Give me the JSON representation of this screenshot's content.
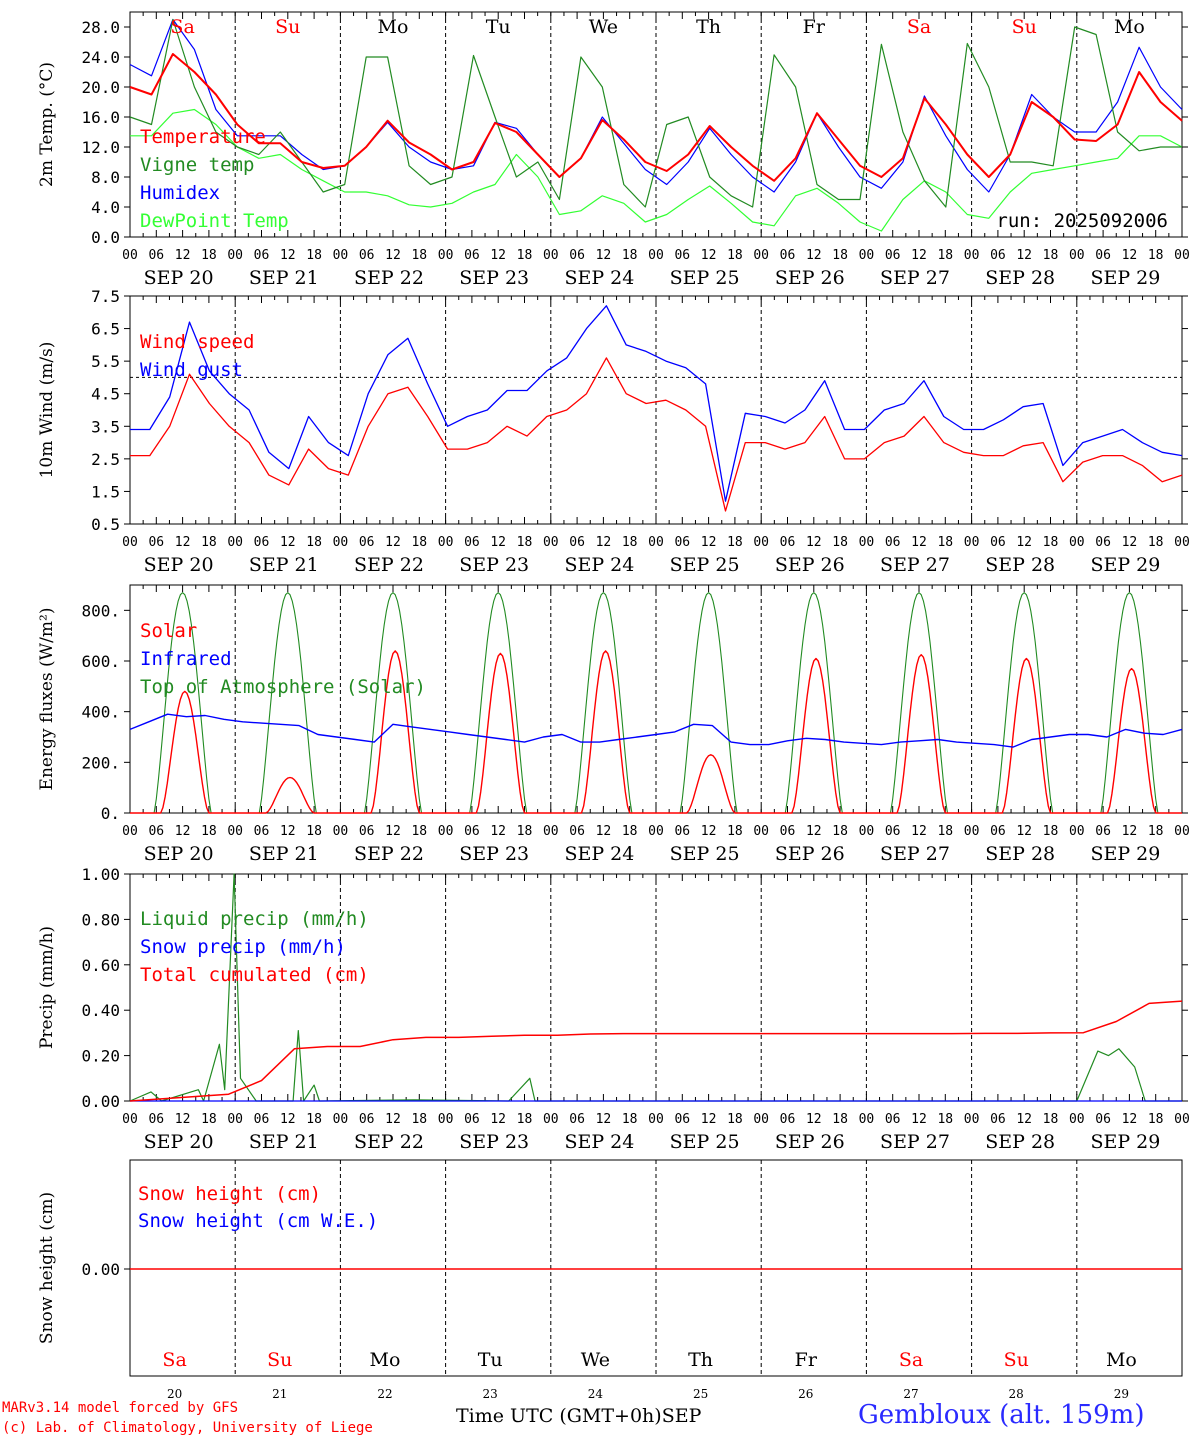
{
  "chart_data": [
    {
      "type": "line",
      "ylabel": "2m Temp. (°C)",
      "ylim": [
        0,
        30
      ],
      "yticks": [
        "0.0",
        "4.0",
        "8.0",
        "12.0",
        "16.0",
        "20.0",
        "24.0",
        "28.0"
      ],
      "run_label": "run: 2025092006",
      "day_names": [
        "Sa",
        "Su",
        "Mo",
        "Tu",
        "We",
        "Th",
        "Fr",
        "Sa",
        "Su",
        "Mo"
      ],
      "series": [
        {
          "name": "Temperature",
          "color": "#ff0000",
          "values": [
            20,
            19,
            24.4,
            22,
            19,
            15,
            12.5,
            12.5,
            10,
            9.2,
            9.5,
            12,
            15.5,
            12.6,
            11,
            9,
            10,
            15.2,
            14,
            11,
            8,
            10.5,
            15.6,
            13,
            10,
            8.8,
            11,
            14.8,
            12,
            9.5,
            7.5,
            10.5,
            16.5,
            13,
            9.5,
            8,
            10.5,
            18.5,
            15,
            11,
            8,
            11,
            18,
            16,
            13,
            12.8,
            15,
            22,
            18,
            15.5
          ]
        },
        {
          "name": "Vigne temp",
          "color": "#228B22",
          "values": [
            16,
            15,
            29,
            20,
            14,
            12,
            11,
            14,
            10,
            6,
            7,
            24,
            24,
            9.5,
            7,
            8,
            24.2,
            16,
            8,
            10,
            5,
            24,
            20,
            7,
            4,
            15,
            16,
            8,
            5.5,
            4,
            24.3,
            20,
            7,
            5,
            5,
            25.7,
            14,
            7.5,
            4,
            25.8,
            20,
            10,
            10,
            9.5,
            28,
            27,
            14,
            11.5,
            12,
            12
          ]
        },
        {
          "name": "Humidex",
          "color": "#0000ff",
          "values": [
            23,
            21.5,
            29,
            25,
            17,
            13.5,
            13.5,
            13.5,
            11,
            9,
            9.5,
            12,
            15.3,
            12,
            10,
            9,
            9.5,
            15.3,
            14.5,
            11,
            8,
            10.5,
            16,
            12.5,
            9,
            7,
            10,
            14.5,
            11,
            8,
            6,
            10,
            16.5,
            12,
            8,
            6.5,
            10,
            18.8,
            13.5,
            9,
            6,
            11,
            19,
            16,
            14,
            14,
            18,
            25.3,
            20,
            17
          ]
        },
        {
          "name": "DewPoint Temp",
          "color": "#33ff33",
          "values": [
            13.5,
            13.5,
            16.5,
            17,
            15,
            12,
            10.5,
            11,
            9,
            7.5,
            6,
            6,
            5.5,
            4.3,
            4,
            4.5,
            6,
            7,
            11,
            8,
            3,
            3.5,
            5.5,
            4.5,
            2,
            3,
            5,
            6.8,
            4.5,
            2,
            1.5,
            5.5,
            6.5,
            4.5,
            2,
            0.8,
            5,
            7.5,
            6,
            3,
            2.5,
            6,
            8.5,
            9,
            9.5,
            10,
            10.5,
            13.5,
            13.5,
            12
          ]
        }
      ]
    },
    {
      "type": "line",
      "ylabel": "10m Wind (m/s)",
      "ylim": [
        0.5,
        7.5
      ],
      "yticks": [
        "0.5",
        "1.5",
        "2.5",
        "3.5",
        "4.5",
        "5.5",
        "6.5",
        "7.5"
      ],
      "reference_line": 5.0,
      "series": [
        {
          "name": "Wind speed",
          "color": "#ff0000",
          "values": [
            2.6,
            2.6,
            3.5,
            5.1,
            4.2,
            3.5,
            3,
            2,
            1.7,
            2.8,
            2.2,
            2,
            3.5,
            4.5,
            4.7,
            3.8,
            2.8,
            2.8,
            3,
            3.5,
            3.2,
            3.8,
            4,
            4.5,
            5.6,
            4.5,
            4.2,
            4.3,
            4,
            3.5,
            0.9,
            3,
            3,
            2.8,
            3,
            3.8,
            2.5,
            2.5,
            3,
            3.2,
            3.8,
            3,
            2.7,
            2.6,
            2.6,
            2.9,
            3,
            1.8,
            2.4,
            2.6,
            2.6,
            2.3,
            1.8,
            2.0
          ]
        },
        {
          "name": "Wind gust",
          "color": "#0000ff",
          "values": [
            3.4,
            3.4,
            4.4,
            6.7,
            5.2,
            4.5,
            4,
            2.7,
            2.2,
            3.8,
            3,
            2.6,
            4.5,
            5.7,
            6.2,
            4.8,
            3.5,
            3.8,
            4,
            4.6,
            4.6,
            5.2,
            5.6,
            6.5,
            7.2,
            6,
            5.8,
            5.5,
            5.3,
            4.8,
            1.2,
            3.9,
            3.8,
            3.6,
            4,
            4.9,
            3.4,
            3.4,
            4,
            4.2,
            4.9,
            3.8,
            3.4,
            3.4,
            3.7,
            4.1,
            4.2,
            2.3,
            3,
            3.2,
            3.4,
            3.0,
            2.7,
            2.6
          ]
        }
      ]
    },
    {
      "type": "line",
      "ylabel": "Energy fluxes (W/m²)",
      "ylim": [
        0,
        900
      ],
      "yticks": [
        "0.",
        "200.",
        "400.",
        "600.",
        "800."
      ],
      "series": [
        {
          "name": "Solar",
          "color": "#ff0000",
          "peaks": [
            480,
            140,
            640,
            630,
            640,
            230,
            610,
            625,
            610,
            570
          ]
        },
        {
          "name": "Infrared",
          "color": "#0000ff",
          "values": [
            330,
            360,
            390,
            380,
            385,
            370,
            360,
            355,
            350,
            345,
            310,
            300,
            290,
            280,
            350,
            340,
            330,
            320,
            310,
            300,
            290,
            280,
            300,
            310,
            280,
            280,
            290,
            300,
            310,
            320,
            350,
            345,
            280,
            270,
            270,
            285,
            295,
            290,
            280,
            275,
            270,
            280,
            285,
            290,
            280,
            275,
            270,
            260,
            290,
            300,
            310,
            310,
            300,
            330,
            315,
            310,
            330
          ]
        },
        {
          "name": "Top of Atmosphere (Solar)",
          "color": "#228B22",
          "peak": 870
        }
      ]
    },
    {
      "type": "line",
      "ylabel": "Precip (mm/h)",
      "ylim": [
        0,
        1.0
      ],
      "yticks": [
        "0.00",
        "0.20",
        "0.40",
        "0.60",
        "0.80",
        "1.00"
      ],
      "series": [
        {
          "name": "Liquid precip (mm/h)",
          "color": "#228B22"
        },
        {
          "name": "Snow precip (mm/h)",
          "color": "#0000ff"
        },
        {
          "name": "Total cumulated (cm)",
          "color": "#ff0000",
          "values": [
            0,
            0.01,
            0.02,
            0.03,
            0.09,
            0.23,
            0.24,
            0.24,
            0.27,
            0.28,
            0.28,
            0.285,
            0.29,
            0.29,
            0.295,
            0.297,
            0.297,
            0.297,
            0.297,
            0.297,
            0.297,
            0.297,
            0.297,
            0.297,
            0.297,
            0.297,
            0.298,
            0.298,
            0.3,
            0.301,
            0.35,
            0.43,
            0.44
          ]
        }
      ]
    },
    {
      "type": "line",
      "ylabel": "Snow height (cm)",
      "ytick": "0.00",
      "series": [
        {
          "name": "Snow height (cm)",
          "color": "#ff0000"
        },
        {
          "name": "Snow height (cm W.E.)",
          "color": "#0000ff"
        }
      ],
      "day_names": [
        "Sa",
        "Su",
        "Mo",
        "Tu",
        "We",
        "Th",
        "Fr",
        "Sa",
        "Su",
        "Mo"
      ],
      "day_numbers": [
        "20",
        "21",
        "22",
        "23",
        "24",
        "25",
        "26",
        "27",
        "28",
        "29"
      ]
    }
  ],
  "x_axis": {
    "hour_labels": [
      "00",
      "06",
      "12",
      "18"
    ],
    "date_labels": [
      "SEP 20",
      "SEP 21",
      "SEP 22",
      "SEP 23",
      "SEP 24",
      "SEP 25",
      "SEP 26",
      "SEP 27",
      "SEP 28",
      "SEP 29"
    ],
    "weekend_color": "#ff0000"
  },
  "footer": {
    "line1": "MARv3.14 model forced by GFS",
    "line2": "(c) Lab. of Climatology, University of Liege",
    "axis_title": "Time UTC (GMT+0h)",
    "month": "SEP",
    "location": "Gembloux (alt. 159m)"
  }
}
